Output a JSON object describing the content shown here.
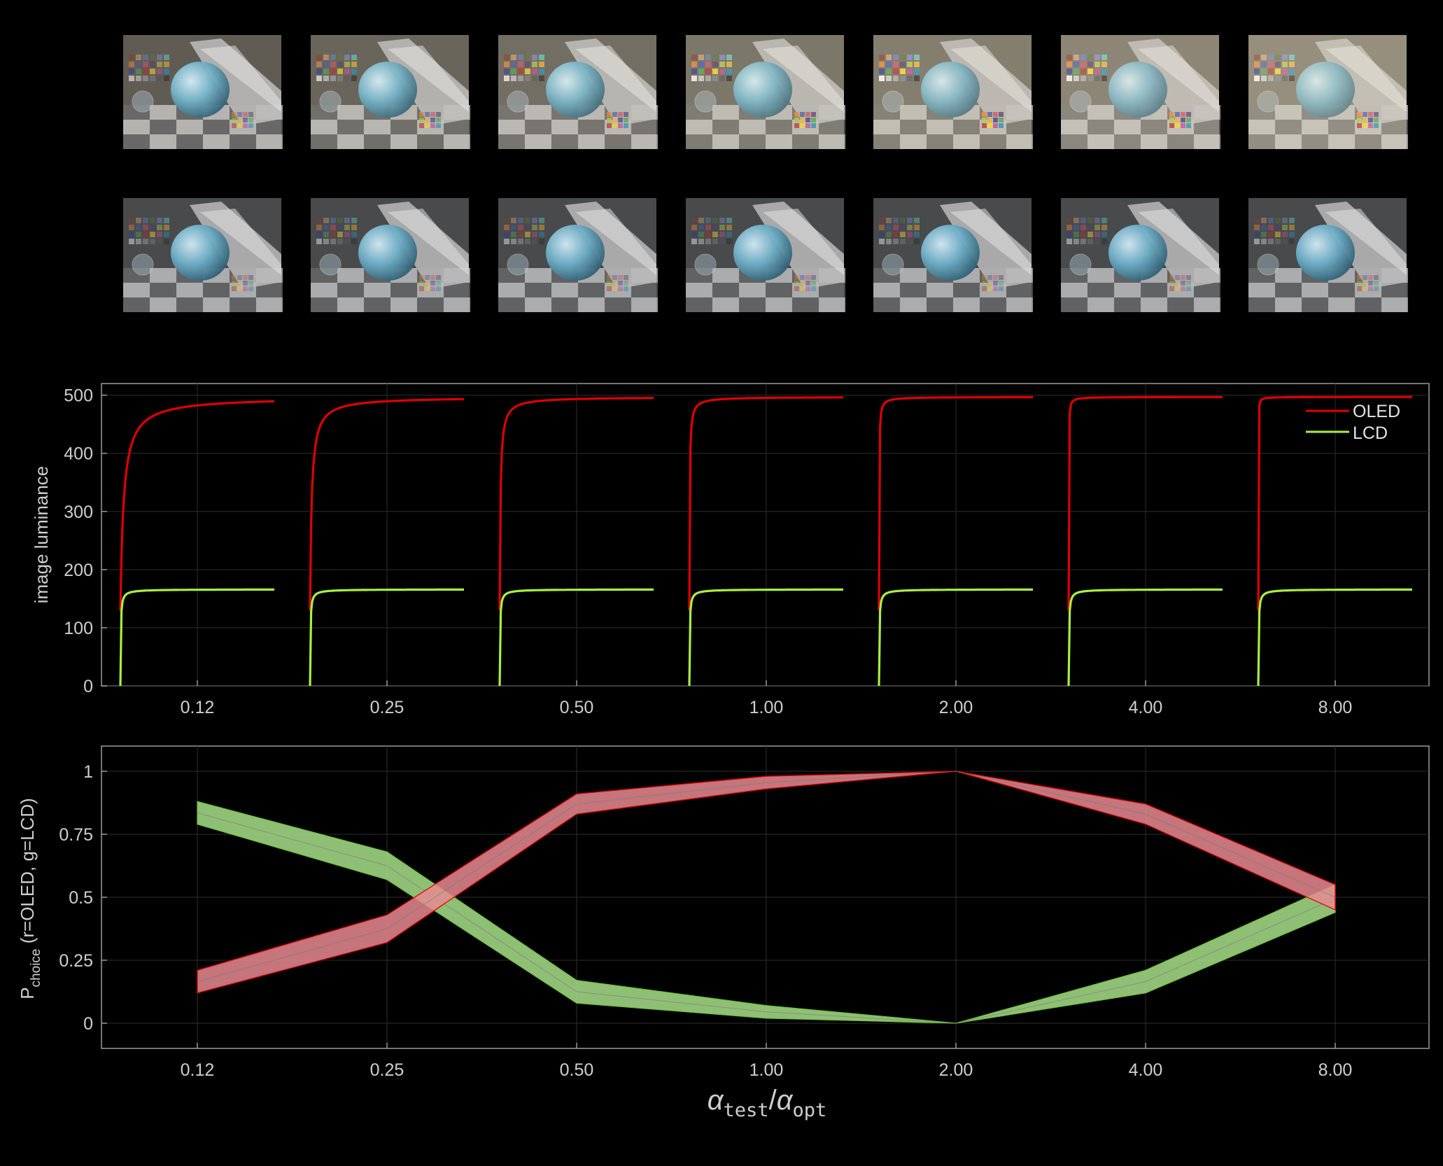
{
  "thumbnails": {
    "rows": [
      {
        "name": "oled-row",
        "tint": "#e8dcc0"
      },
      {
        "name": "lcd-row",
        "tint": "#9aa2a8"
      }
    ],
    "labels": [
      "0.12",
      "0.25",
      "0.50",
      "1.00",
      "2.00",
      "4.00",
      "8.00"
    ]
  },
  "colors": {
    "background": "#000000",
    "oled": "#e00000",
    "lcd": "#a8f040",
    "oled_band": "#e88a90",
    "lcd_band": "#a8e08a",
    "axis": "#9a9a9a",
    "grid": "#2e2e2e"
  },
  "chart_data": [
    {
      "type": "line",
      "ylabel": "image luminance",
      "ylim": [
        0,
        520
      ],
      "yticks": [
        "0",
        "100",
        "200",
        "300",
        "400",
        "500"
      ],
      "categories": [
        "0.12",
        "0.25",
        "0.50",
        "1.00",
        "2.00",
        "4.00",
        "8.00"
      ],
      "legend": {
        "placement": "top-right",
        "entries": [
          "OLED",
          "LCD"
        ]
      },
      "grid": true,
      "series": [
        {
          "name": "OLED",
          "start": 130,
          "plateau": 497,
          "rise_rate": [
            6,
            12,
            25,
            55,
            110,
            220,
            440
          ]
        },
        {
          "name": "LCD",
          "start": 0,
          "plateau": 166,
          "rise_rate": [
            60,
            60,
            60,
            60,
            60,
            60,
            60
          ]
        }
      ]
    },
    {
      "type": "area",
      "ylabel_main": "P",
      "ylabel_sub": "choice",
      "ylabel_rest": " (r=OLED, g=LCD)",
      "xlabel_alpha": "α",
      "xlabel_sub1": "test",
      "xlabel_slash": "/",
      "xlabel_sub2": "opt",
      "ylim": [
        -0.1,
        1.1
      ],
      "yticks": [
        "0",
        "0.25",
        "0.5",
        "0.75",
        "1"
      ],
      "categories": [
        "0.12",
        "0.25",
        "0.50",
        "1.00",
        "2.00",
        "4.00",
        "8.00"
      ],
      "grid": true,
      "series": [
        {
          "name": "OLED",
          "lower": [
            0.12,
            0.32,
            0.83,
            0.93,
            1.0,
            0.79,
            0.45
          ],
          "upper": [
            0.21,
            0.43,
            0.91,
            0.98,
            1.0,
            0.87,
            0.55
          ]
        },
        {
          "name": "LCD",
          "lower": [
            0.79,
            0.57,
            0.08,
            0.02,
            0.0,
            0.12,
            0.44
          ],
          "upper": [
            0.88,
            0.68,
            0.17,
            0.07,
            0.0,
            0.21,
            0.55
          ]
        }
      ]
    }
  ]
}
